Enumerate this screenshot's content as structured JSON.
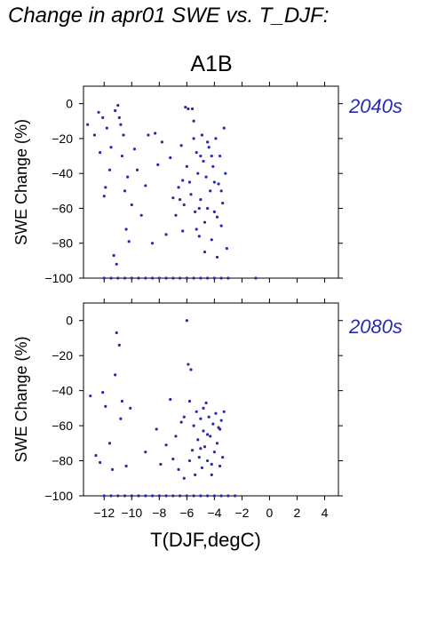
{
  "header": {
    "title": "Change in apr01 SWE vs. T_DJF:",
    "scenario": "A1B"
  },
  "colors": {
    "points": "#2a2aae",
    "axes": "#000000",
    "period_text": "#2a2aae"
  },
  "chart_data": [
    {
      "type": "scatter",
      "period_label": "2040s",
      "xlabel": "",
      "ylabel": "SWE Change (%)",
      "xlim": [
        -13.5,
        5
      ],
      "ylim": [
        -100,
        10
      ],
      "yticks": [
        0,
        -20,
        -40,
        -60,
        -80,
        -100
      ],
      "xticks": [
        -12,
        -10,
        -8,
        -6,
        -4,
        -2,
        0,
        2,
        4
      ],
      "points": [
        [
          -13.2,
          -12
        ],
        [
          -12.7,
          -18
        ],
        [
          -12.4,
          -5
        ],
        [
          -12.3,
          -28
        ],
        [
          -12.1,
          -8
        ],
        [
          -12.0,
          -53
        ],
        [
          -11.9,
          -48
        ],
        [
          -11.8,
          -14
        ],
        [
          -11.6,
          -38
        ],
        [
          -11.5,
          -25
        ],
        [
          -11.3,
          -87
        ],
        [
          -11.2,
          -4
        ],
        [
          -11.1,
          -92
        ],
        [
          -11.0,
          -1
        ],
        [
          -10.9,
          -8
        ],
        [
          -10.8,
          -12
        ],
        [
          -10.7,
          -30
        ],
        [
          -10.6,
          -18
        ],
        [
          -10.5,
          -50
        ],
        [
          -10.4,
          -72
        ],
        [
          -10.3,
          -42
        ],
        [
          -10.2,
          -79
        ],
        [
          -10.0,
          -58
        ],
        [
          -9.8,
          -26
        ],
        [
          -9.6,
          -38
        ],
        [
          -9.3,
          -64
        ],
        [
          -9.0,
          -47
        ],
        [
          -8.8,
          -18
        ],
        [
          -8.5,
          -80
        ],
        [
          -8.3,
          -17
        ],
        [
          -8.1,
          -35
        ],
        [
          -7.8,
          -22
        ],
        [
          -7.5,
          -75
        ],
        [
          -7.2,
          -31
        ],
        [
          -7.0,
          -54
        ],
        [
          -6.8,
          -64
        ],
        [
          -6.6,
          -48
        ],
        [
          -6.5,
          -55
        ],
        [
          -6.4,
          -24
        ],
        [
          -6.3,
          -73
        ],
        [
          -6.2,
          -58
        ],
        [
          -6.1,
          -2
        ],
        [
          -6.0,
          -36
        ],
        [
          -5.9,
          -3
        ],
        [
          -5.8,
          -45
        ],
        [
          -5.7,
          -52
        ],
        [
          -5.6,
          -3
        ],
        [
          -5.5,
          -10
        ],
        [
          -5.4,
          -62
        ],
        [
          -5.3,
          -28
        ],
        [
          -5.2,
          -40
        ],
        [
          -5.1,
          -76
        ],
        [
          -5.0,
          -55
        ],
        [
          -4.9,
          -18
        ],
        [
          -4.8,
          -33
        ],
        [
          -4.7,
          -68
        ],
        [
          -4.6,
          -42
        ],
        [
          -4.5,
          -60
        ],
        [
          -4.4,
          -25
        ],
        [
          -4.3,
          -50
        ],
        [
          -4.2,
          -78
        ],
        [
          -4.1,
          -36
        ],
        [
          -4.0,
          -62
        ],
        [
          -3.9,
          -20
        ],
        [
          -3.8,
          -88
        ],
        [
          -3.7,
          -46
        ],
        [
          -3.6,
          -30
        ],
        [
          -3.5,
          -70
        ],
        [
          -3.4,
          -57
        ],
        [
          -3.3,
          -14
        ],
        [
          -3.2,
          -40
        ],
        [
          -3.1,
          -83
        ],
        [
          -4.5,
          -22
        ],
        [
          -5.0,
          -30
        ],
        [
          -5.5,
          -20
        ],
        [
          -4.0,
          -45
        ],
        [
          -3.8,
          -65
        ],
        [
          -4.7,
          -85
        ],
        [
          -5.3,
          -72
        ],
        [
          -6.3,
          -44
        ],
        [
          -3.5,
          -50
        ],
        [
          -4.2,
          -30
        ],
        [
          -5.1,
          -60
        ],
        [
          -12.0,
          -100
        ],
        [
          -11.5,
          -100
        ],
        [
          -11.0,
          -100
        ],
        [
          -10.5,
          -100
        ],
        [
          -10.0,
          -100
        ],
        [
          -9.5,
          -100
        ],
        [
          -9.0,
          -100
        ],
        [
          -8.5,
          -100
        ],
        [
          -8.0,
          -100
        ],
        [
          -7.5,
          -100
        ],
        [
          -7.0,
          -100
        ],
        [
          -6.5,
          -100
        ],
        [
          -6.0,
          -100
        ],
        [
          -5.5,
          -100
        ],
        [
          -5.0,
          -100
        ],
        [
          -4.5,
          -100
        ],
        [
          -4.0,
          -100
        ],
        [
          -3.5,
          -100
        ],
        [
          -3.0,
          -100
        ],
        [
          -1.0,
          -100
        ]
      ]
    },
    {
      "type": "scatter",
      "period_label": "2080s",
      "xlabel": "T(DJF,degC)",
      "ylabel": "SWE Change (%)",
      "xlim": [
        -13.5,
        5
      ],
      "ylim": [
        -100,
        10
      ],
      "yticks": [
        0,
        -20,
        -40,
        -60,
        -80,
        -100
      ],
      "xticks": [
        -12,
        -10,
        -8,
        -6,
        -4,
        -2,
        0,
        2,
        4
      ],
      "xticklabels": [
        "−12",
        "−10",
        "−8",
        "−6",
        "−4",
        "−2",
        "0",
        "2",
        "4"
      ],
      "points": [
        [
          -13.0,
          -43
        ],
        [
          -12.6,
          -77
        ],
        [
          -12.3,
          -81
        ],
        [
          -12.1,
          -41
        ],
        [
          -11.9,
          -49
        ],
        [
          -11.6,
          -70
        ],
        [
          -11.4,
          -85
        ],
        [
          -11.2,
          -31
        ],
        [
          -11.1,
          -7
        ],
        [
          -10.9,
          -14
        ],
        [
          -10.8,
          -56
        ],
        [
          -10.7,
          -46
        ],
        [
          -10.4,
          -83
        ],
        [
          -10.1,
          -50
        ],
        [
          -9.0,
          -75
        ],
        [
          -8.2,
          -62
        ],
        [
          -7.9,
          -82
        ],
        [
          -7.5,
          -71
        ],
        [
          -7.2,
          -45
        ],
        [
          -7.0,
          -79
        ],
        [
          -6.8,
          -66
        ],
        [
          -6.6,
          -85
        ],
        [
          -6.4,
          -58
        ],
        [
          -6.2,
          -90
        ],
        [
          -6.0,
          0
        ],
        [
          -5.9,
          -25
        ],
        [
          -5.8,
          -46
        ],
        [
          -5.7,
          -28
        ],
        [
          -5.6,
          -74
        ],
        [
          -5.5,
          -60
        ],
        [
          -5.4,
          -88
        ],
        [
          -5.3,
          -52
        ],
        [
          -5.2,
          -68
        ],
        [
          -5.1,
          -78
        ],
        [
          -5.0,
          -56
        ],
        [
          -4.9,
          -84
        ],
        [
          -4.8,
          -63
        ],
        [
          -4.7,
          -72
        ],
        [
          -4.6,
          -47
        ],
        [
          -4.5,
          -80
        ],
        [
          -4.4,
          -55
        ],
        [
          -4.3,
          -66
        ],
        [
          -4.2,
          -82
        ],
        [
          -4.1,
          -59
        ],
        [
          -4.0,
          -75
        ],
        [
          -3.9,
          -53
        ],
        [
          -3.8,
          -70
        ],
        [
          -3.7,
          -61
        ],
        [
          -3.6,
          -83
        ],
        [
          -3.5,
          -57
        ],
        [
          -3.4,
          -78
        ],
        [
          -3.3,
          -52
        ],
        [
          -4.5,
          -65
        ],
        [
          -5.0,
          -73
        ],
        [
          -5.8,
          -80
        ],
        [
          -6.2,
          -55
        ],
        [
          -4.2,
          -88
        ],
        [
          -3.6,
          -62
        ],
        [
          -4.8,
          -50
        ],
        [
          -12.0,
          -100
        ],
        [
          -11.5,
          -100
        ],
        [
          -11.0,
          -100
        ],
        [
          -10.5,
          -100
        ],
        [
          -10.0,
          -100
        ],
        [
          -9.5,
          -100
        ],
        [
          -9.0,
          -100
        ],
        [
          -8.5,
          -100
        ],
        [
          -8.0,
          -100
        ],
        [
          -7.5,
          -100
        ],
        [
          -7.0,
          -100
        ],
        [
          -6.5,
          -100
        ],
        [
          -6.0,
          -100
        ],
        [
          -5.5,
          -100
        ],
        [
          -5.0,
          -100
        ],
        [
          -4.5,
          -100
        ],
        [
          -4.0,
          -100
        ],
        [
          -3.5,
          -100
        ],
        [
          -3.0,
          -100
        ],
        [
          -2.5,
          -100
        ]
      ]
    }
  ]
}
